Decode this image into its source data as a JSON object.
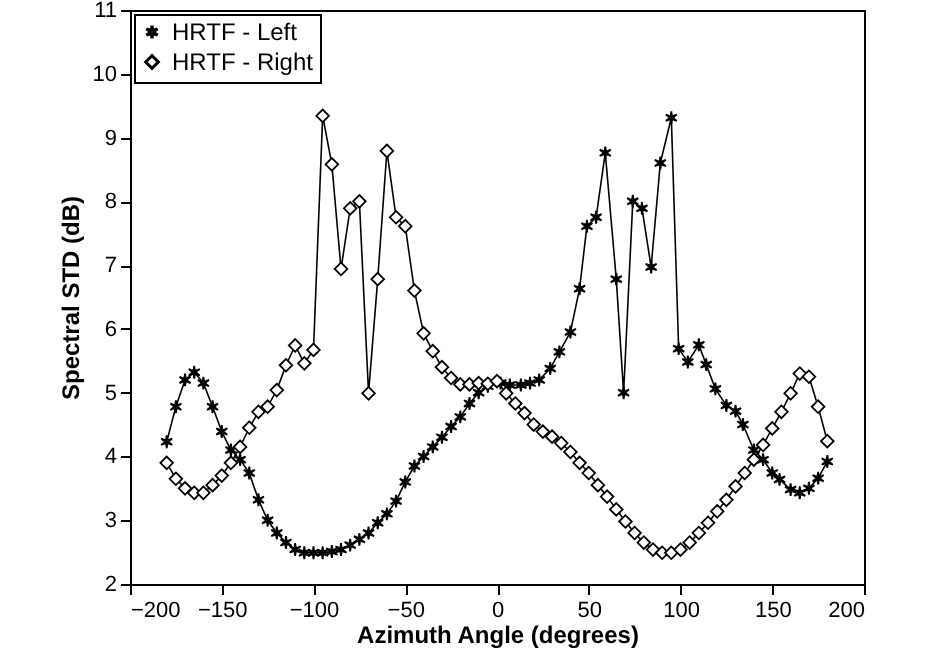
{
  "chart_data": {
    "type": "line",
    "xlabel": "Azimuth Angle (degrees)",
    "ylabel": "Spectral STD (dB)",
    "xlim": [
      -200,
      200
    ],
    "xticks": [
      -200,
      -150,
      -100,
      -50,
      0,
      50,
      100,
      150,
      200
    ],
    "ylim": [
      2,
      11
    ],
    "yticks": [
      2,
      3,
      4,
      5,
      6,
      7,
      8,
      9,
      10,
      11
    ],
    "grid": false,
    "legend": "top left",
    "line_style": "solid",
    "series": [
      {
        "name": "HRTF - Left",
        "color": "#000000",
        "marker": "cross",
        "x": [
          -180,
          -175,
          -170,
          -165,
          -160,
          -155,
          -150,
          -145,
          -140,
          -135,
          -130,
          -125,
          -120,
          -115,
          -110,
          -105,
          -100,
          -95,
          -90,
          -85,
          -80,
          -75,
          -70,
          -65,
          -60,
          -55,
          -50,
          -45,
          -40,
          -35,
          -30,
          -25,
          -20,
          -15,
          -10,
          -5,
          2,
          7,
          13,
          18,
          23,
          29,
          34,
          40,
          45,
          49,
          54,
          59,
          65,
          69,
          74,
          79,
          84,
          89,
          95,
          99,
          104,
          110,
          114,
          119,
          125,
          130,
          134,
          140,
          145,
          150,
          154,
          160,
          165,
          170,
          175,
          180
        ],
        "values": [
          4.23,
          4.78,
          5.2,
          5.32,
          5.15,
          4.78,
          4.39,
          4.1,
          3.95,
          3.74,
          3.32,
          3.0,
          2.8,
          2.65,
          2.54,
          2.49,
          2.49,
          2.49,
          2.51,
          2.54,
          2.61,
          2.7,
          2.8,
          2.96,
          3.1,
          3.3,
          3.6,
          3.85,
          4.0,
          4.15,
          4.3,
          4.47,
          4.62,
          4.83,
          5.0,
          5.1,
          5.15,
          5.12,
          5.12,
          5.15,
          5.2,
          5.38,
          5.64,
          5.95,
          6.63,
          7.61,
          7.75,
          8.76,
          6.78,
          5.0,
          8.0,
          7.89,
          6.97,
          8.6,
          9.31,
          5.69,
          5.48,
          5.75,
          5.44,
          5.06,
          4.8,
          4.71,
          4.5,
          4.1,
          3.95,
          3.74,
          3.64,
          3.48,
          3.43,
          3.5,
          3.66,
          3.92
        ]
      },
      {
        "name": "HRTF - Right",
        "color": "#000000",
        "marker": "diamond",
        "x": [
          -180,
          -175,
          -170,
          -165,
          -160,
          -155,
          -150,
          -145,
          -140,
          -135,
          -130,
          -125,
          -120,
          -115,
          -110,
          -105,
          -100,
          -95,
          -90,
          -85,
          -80,
          -75,
          -70,
          -65,
          -60,
          -55,
          -50,
          -45,
          -40,
          -35,
          -30,
          -25,
          -20,
          -15,
          -10,
          -5,
          0,
          5,
          10,
          15,
          20,
          25,
          30,
          35,
          40,
          45,
          50,
          55,
          60,
          65,
          70,
          75,
          80,
          85,
          90,
          95,
          100,
          105,
          110,
          115,
          120,
          125,
          130,
          135,
          140,
          145,
          150,
          155,
          160,
          165,
          170,
          175,
          180
        ],
        "values": [
          3.9,
          3.65,
          3.5,
          3.43,
          3.43,
          3.55,
          3.7,
          3.9,
          4.15,
          4.45,
          4.7,
          4.78,
          5.04,
          5.43,
          5.74,
          5.46,
          5.67,
          9.34,
          8.58,
          6.94,
          7.89,
          8.0,
          4.99,
          6.78,
          8.79,
          7.75,
          7.61,
          6.6,
          5.93,
          5.65,
          5.4,
          5.23,
          5.13,
          5.13,
          5.15,
          5.14,
          5.18,
          4.99,
          4.83,
          4.68,
          4.5,
          4.39,
          4.31,
          4.21,
          4.07,
          3.9,
          3.74,
          3.55,
          3.37,
          3.17,
          2.98,
          2.8,
          2.65,
          2.54,
          2.49,
          2.49,
          2.54,
          2.65,
          2.8,
          2.96,
          3.14,
          3.32,
          3.53,
          3.74,
          3.95,
          4.18,
          4.44,
          4.7,
          4.99,
          5.3,
          5.25,
          4.78,
          4.24
        ]
      }
    ]
  }
}
